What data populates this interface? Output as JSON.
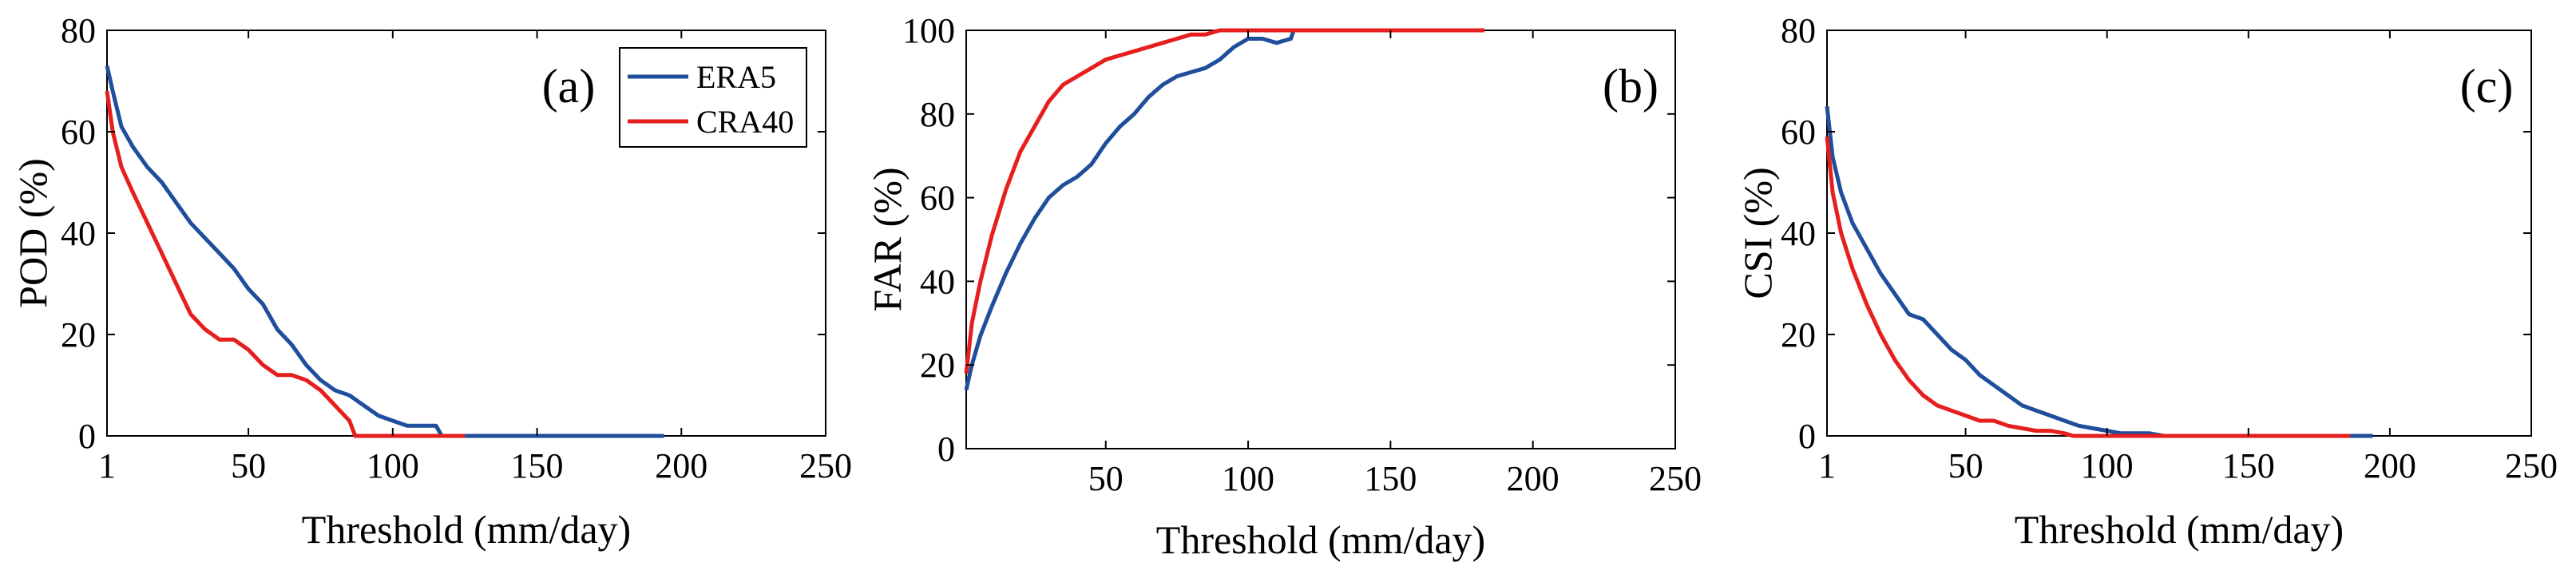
{
  "colors": {
    "ERA5": "#1f4e9c",
    "CRA40": "#e61e1e",
    "axis": "#000000"
  },
  "chart_data": [
    {
      "type": "line",
      "panel_label": "(a)",
      "xlabel": "Threshold (mm/day)",
      "ylabel": "POD (%)",
      "xlim": [
        1,
        250
      ],
      "ylim": [
        0,
        80
      ],
      "x_ticks": [
        1,
        50,
        100,
        150,
        200,
        250
      ],
      "x_tick_labels": [
        "1",
        "50",
        "100",
        "150",
        "200",
        "250"
      ],
      "y_ticks": [
        0,
        20,
        40,
        60,
        80
      ],
      "y_tick_labels": [
        "0",
        "20",
        "40",
        "60",
        "80"
      ],
      "legend": {
        "position": "top-right",
        "entries": [
          "ERA5",
          "CRA40"
        ]
      },
      "series": [
        {
          "name": "ERA5",
          "color_key": "ERA5",
          "x": [
            1,
            3,
            6,
            10,
            15,
            20,
            25,
            30,
            35,
            40,
            45,
            50,
            55,
            60,
            65,
            70,
            75,
            80,
            85,
            90,
            95,
            100,
            105,
            110,
            115,
            117,
            120,
            150,
            194
          ],
          "y": [
            73,
            68,
            61,
            57,
            53,
            50,
            46,
            42,
            39,
            36,
            33,
            29,
            26,
            21,
            18,
            14,
            11,
            9,
            8,
            6,
            4,
            3,
            2,
            2,
            2,
            0,
            0,
            0,
            0
          ]
        },
        {
          "name": "CRA40",
          "color_key": "CRA40",
          "x": [
            1,
            3,
            6,
            10,
            15,
            20,
            25,
            30,
            35,
            40,
            45,
            50,
            55,
            60,
            65,
            70,
            75,
            80,
            85,
            87,
            90,
            100,
            110,
            120,
            125
          ],
          "y": [
            68,
            60,
            53,
            48,
            42,
            36,
            30,
            24,
            21,
            19,
            19,
            17,
            14,
            12,
            12,
            11,
            9,
            6,
            3,
            0,
            0,
            0,
            0,
            0,
            0
          ]
        }
      ]
    },
    {
      "type": "line",
      "panel_label": "(b)",
      "xlabel": "Threshold (mm/day)",
      "ylabel": "FAR (%)",
      "xlim": [
        1,
        250
      ],
      "ylim": [
        0,
        100
      ],
      "x_ticks": [
        50,
        100,
        150,
        200,
        250
      ],
      "x_tick_labels": [
        "50",
        "100",
        "150",
        "200",
        "250"
      ],
      "y_ticks": [
        0,
        20,
        40,
        60,
        80,
        100
      ],
      "y_tick_labels": [
        "0",
        "20",
        "40",
        "60",
        "80",
        "100"
      ],
      "series": [
        {
          "name": "ERA5",
          "color_key": "ERA5",
          "x": [
            1,
            3,
            6,
            10,
            15,
            20,
            25,
            30,
            35,
            40,
            45,
            50,
            55,
            60,
            65,
            70,
            75,
            80,
            85,
            90,
            95,
            100,
            105,
            110,
            115,
            116
          ],
          "y": [
            14,
            20,
            27,
            34,
            42,
            49,
            55,
            60,
            63,
            65,
            68,
            73,
            77,
            80,
            84,
            87,
            89,
            90,
            91,
            93,
            96,
            98,
            98,
            97,
            98,
            100
          ]
        },
        {
          "name": "CRA40",
          "color_key": "CRA40",
          "x": [
            1,
            3,
            6,
            10,
            15,
            20,
            25,
            30,
            35,
            40,
            45,
            50,
            55,
            60,
            65,
            70,
            75,
            80,
            85,
            90,
            100,
            120,
            150,
            183
          ],
          "y": [
            18,
            30,
            40,
            51,
            62,
            71,
            77,
            83,
            87,
            89,
            91,
            93,
            94,
            95,
            96,
            97,
            98,
            99,
            99,
            100,
            100,
            100,
            100,
            100
          ]
        }
      ]
    },
    {
      "type": "line",
      "panel_label": "(c)",
      "xlabel": "Threshold (mm/day)",
      "ylabel": "CSI (%)",
      "xlim": [
        1,
        250
      ],
      "ylim": [
        0,
        80
      ],
      "x_ticks": [
        1,
        50,
        100,
        150,
        200,
        250
      ],
      "x_tick_labels": [
        "1",
        "50",
        "100",
        "150",
        "200",
        "250"
      ],
      "y_ticks": [
        0,
        20,
        40,
        60,
        80
      ],
      "y_tick_labels": [
        "0",
        "20",
        "40",
        "60",
        "80"
      ],
      "series": [
        {
          "name": "ERA5",
          "color_key": "ERA5",
          "x": [
            1,
            3,
            6,
            10,
            15,
            20,
            25,
            30,
            35,
            40,
            45,
            50,
            55,
            60,
            65,
            70,
            75,
            80,
            85,
            90,
            95,
            100,
            105,
            110,
            115,
            120,
            150,
            194
          ],
          "y": [
            65,
            55,
            48,
            42,
            37,
            32,
            28,
            24,
            23,
            20,
            17,
            15,
            12,
            10,
            8,
            6,
            5,
            4,
            3,
            2,
            1.5,
            1,
            0.5,
            0.5,
            0.5,
            0,
            0,
            0
          ]
        },
        {
          "name": "CRA40",
          "color_key": "CRA40",
          "x": [
            1,
            3,
            6,
            10,
            15,
            20,
            25,
            30,
            35,
            40,
            45,
            50,
            55,
            60,
            65,
            70,
            75,
            80,
            85,
            88,
            90,
            100,
            120,
            150,
            186
          ],
          "y": [
            59,
            48,
            40,
            33,
            26,
            20,
            15,
            11,
            8,
            6,
            5,
            4,
            3,
            3,
            2,
            1.5,
            1,
            1,
            0.5,
            0,
            0,
            0,
            0,
            0,
            0
          ]
        }
      ]
    }
  ]
}
